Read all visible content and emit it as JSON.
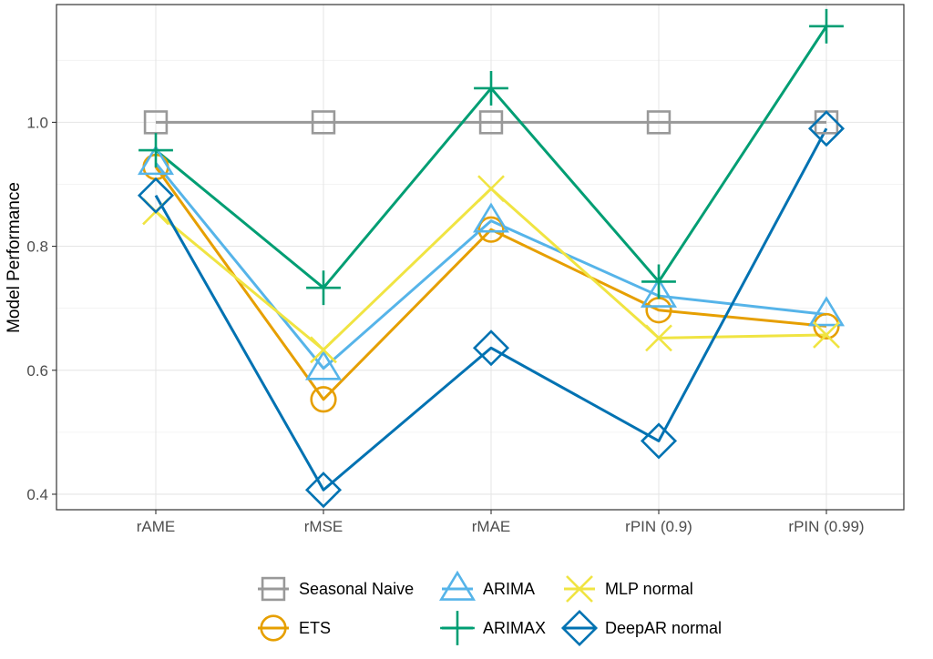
{
  "chart_data": {
    "type": "line",
    "categories": [
      "rAME",
      "rMSE",
      "rMAE",
      "rPIN (0.9)",
      "rPIN (0.99)"
    ],
    "ylabel": "Model Performance",
    "ylim": [
      0.375,
      1.19
    ],
    "yticks": [
      0.4,
      0.6,
      0.8,
      1.0
    ],
    "ytick_labels": [
      "0.4",
      "0.6",
      "0.8",
      "1.0"
    ],
    "grid": true,
    "legend_position": "bottom",
    "series": [
      {
        "name": "Seasonal Naive",
        "color": "#999999",
        "marker": "square",
        "values": [
          1.0,
          1.0,
          1.0,
          1.0,
          1.0
        ]
      },
      {
        "name": "ETS",
        "color": "#E69F00",
        "marker": "circle",
        "values": [
          0.928,
          0.553,
          0.827,
          0.697,
          0.671
        ]
      },
      {
        "name": "ARIMA",
        "color": "#56B4E9",
        "marker": "triangle",
        "values": [
          0.934,
          0.603,
          0.841,
          0.72,
          0.69
        ]
      },
      {
        "name": "ARIMAX",
        "color": "#009E73",
        "marker": "plus",
        "values": [
          0.955,
          0.733,
          1.055,
          0.743,
          1.155
        ]
      },
      {
        "name": "MLP normal",
        "color": "#F0E442",
        "marker": "x",
        "values": [
          0.856,
          0.633,
          0.893,
          0.652,
          0.657
        ]
      },
      {
        "name": "DeepAR normal",
        "color": "#0072B2",
        "marker": "diamond",
        "values": [
          0.882,
          0.407,
          0.636,
          0.486,
          0.99
        ]
      }
    ]
  }
}
